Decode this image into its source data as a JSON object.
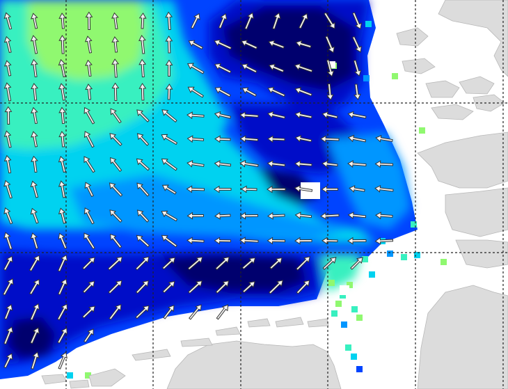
{
  "map": {
    "land_color": "#dcdcdc",
    "land_stroke": "#b8b8b8",
    "water_unsampled_color": "#ffffff",
    "grid_line_color": "#222222",
    "arrow_fill": "#f2f2f2",
    "arrow_stroke": "#333333",
    "palette": {
      "level_0": "#00006e",
      "level_1": "#0010c8",
      "level_2": "#0044ff",
      "level_3": "#0096ff",
      "level_4": "#00d2f0",
      "level_5": "#38f0c0",
      "level_6": "#90f870"
    },
    "icons": [
      "wind-arrow-icon"
    ]
  }
}
